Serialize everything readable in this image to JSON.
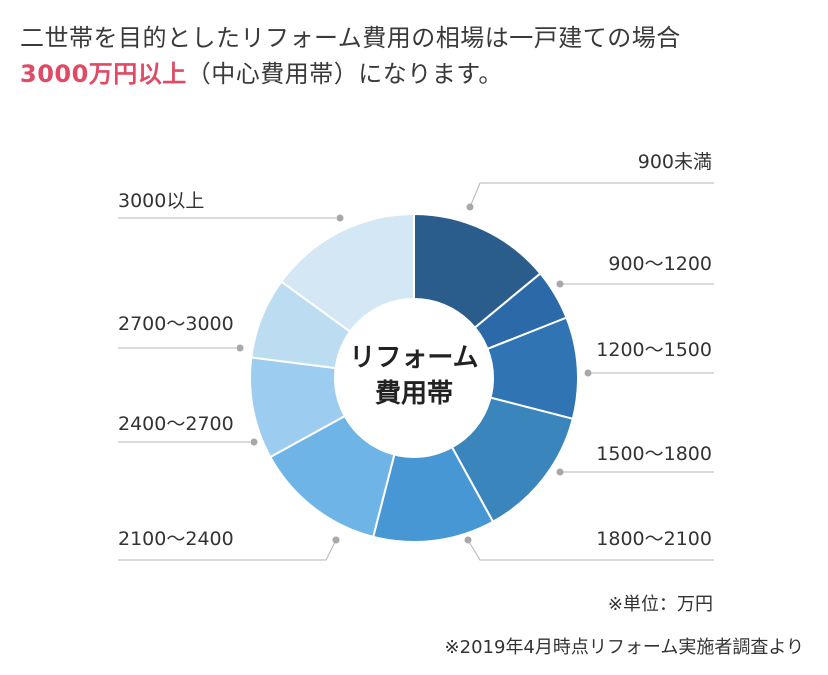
{
  "headline": {
    "line1": "二世帯を目的としたリフォーム費用の相場は一戸建ての場合",
    "highlight": "3000万円以上",
    "line2_rest": "（中心費用帯）になります。"
  },
  "chart_data": {
    "type": "pie",
    "donut": true,
    "center_label": [
      "リフォーム",
      "費用帯"
    ],
    "categories": [
      "900未満",
      "900〜1200",
      "1200〜1500",
      "1500〜1800",
      "1800〜2100",
      "2100〜2400",
      "2400〜2700",
      "2700〜3000",
      "3000以上"
    ],
    "values": [
      14,
      5,
      10,
      13,
      12,
      13,
      10,
      8,
      15
    ],
    "colors": [
      "#2b5d8c",
      "#2c69a8",
      "#3174b3",
      "#3b85bd",
      "#4697d4",
      "#6eb4e6",
      "#9ccdf0",
      "#bcdcf2",
      "#d3e7f5"
    ]
  },
  "note": "※単位：万円",
  "source": "※2019年4月時点リフォーム実施者調査より"
}
